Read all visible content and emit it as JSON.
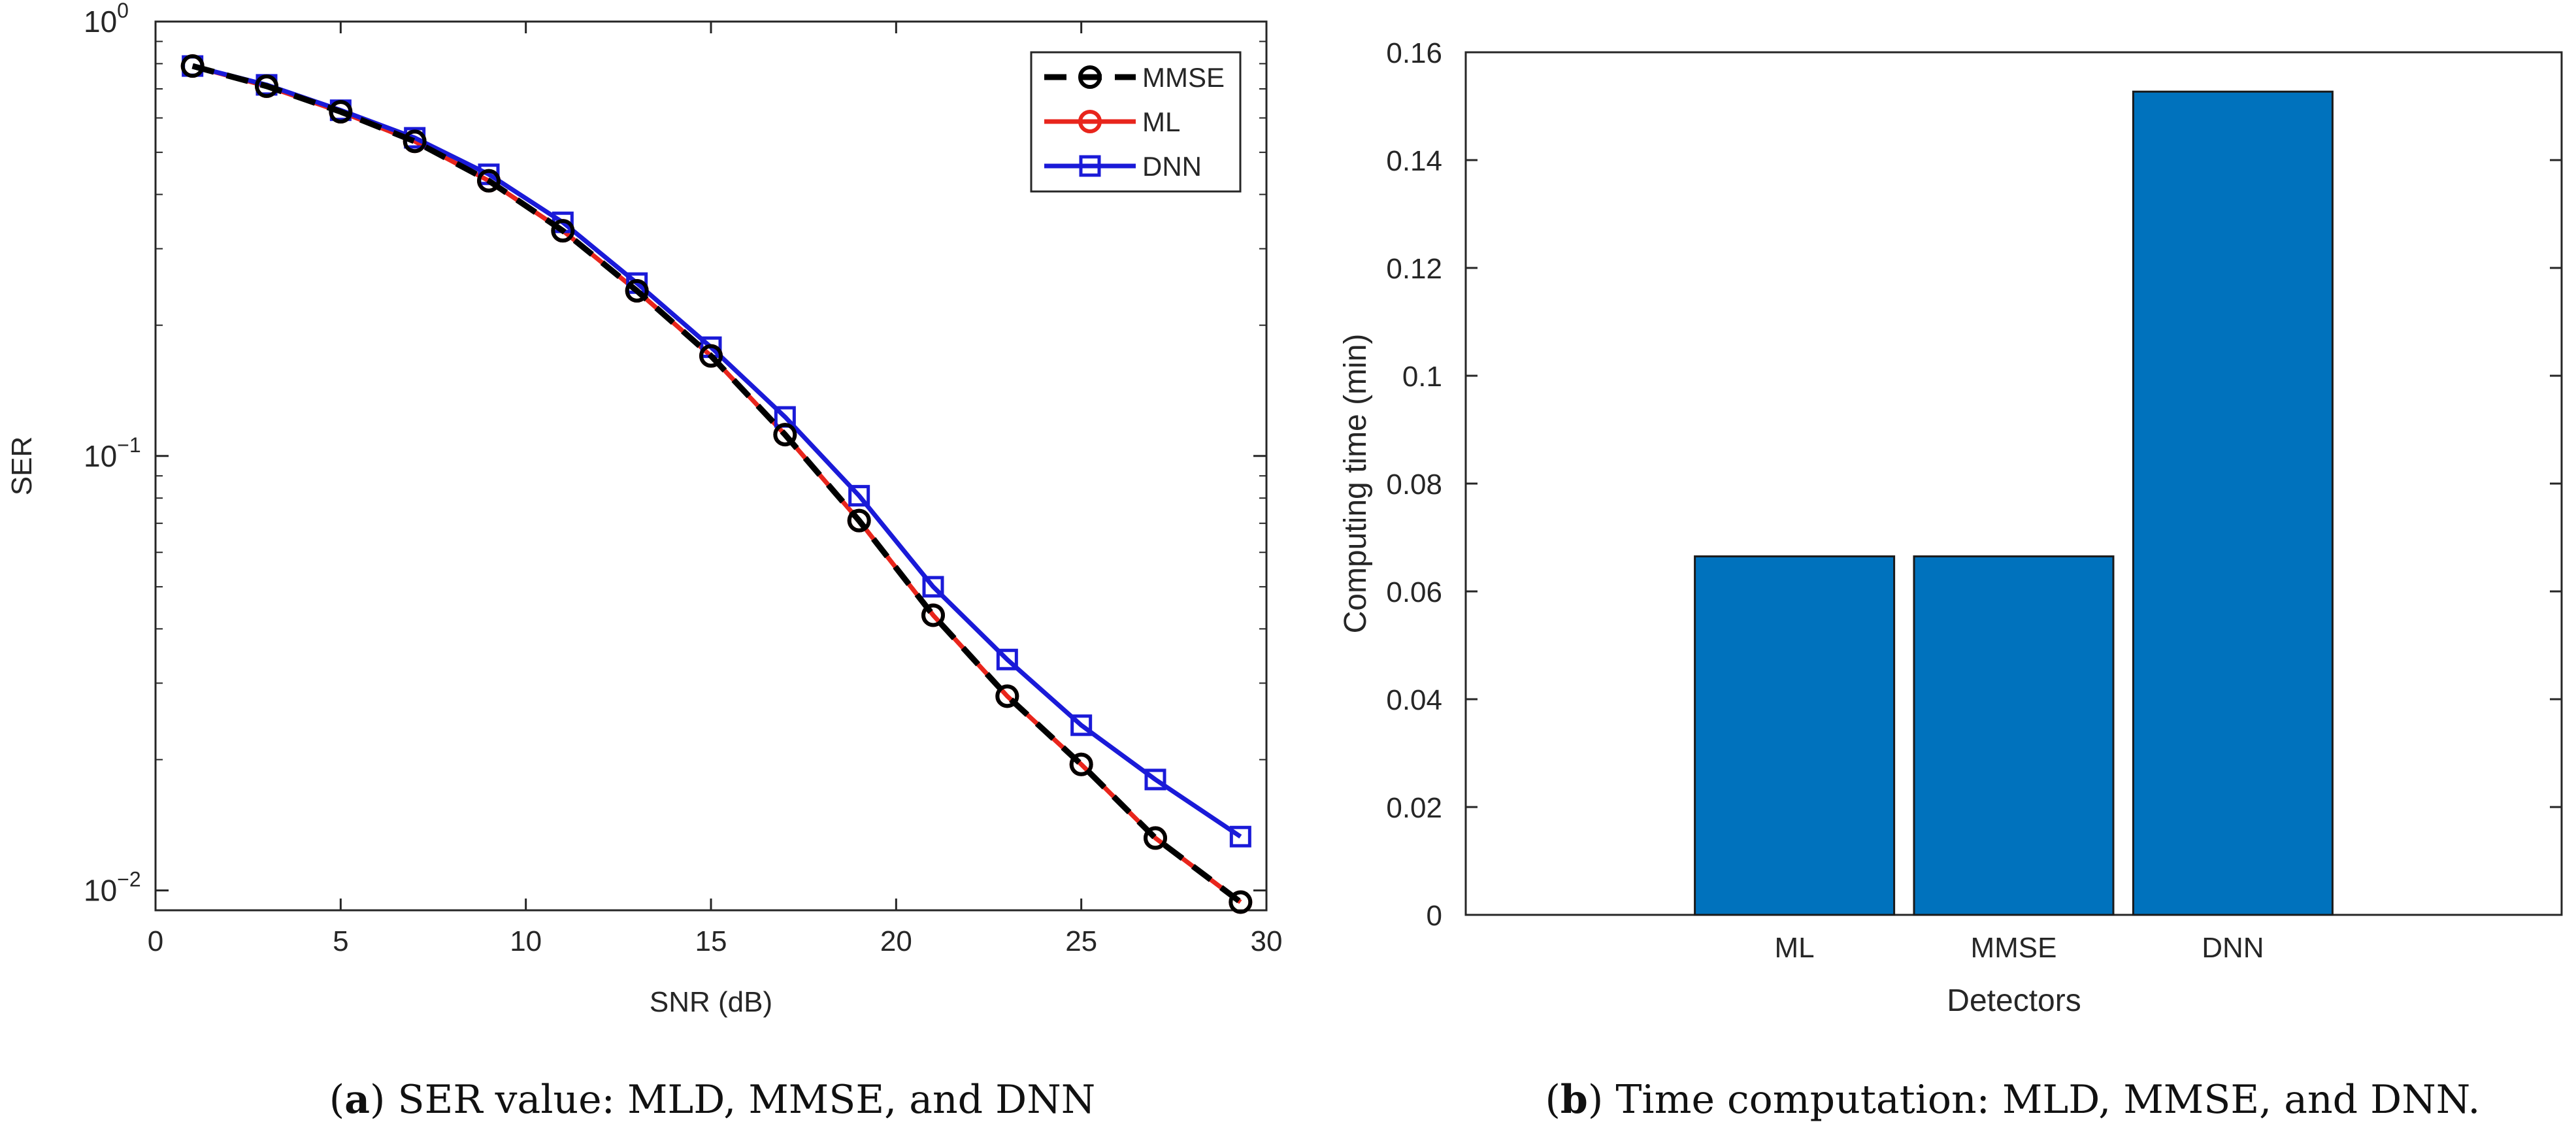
{
  "chart_data": [
    {
      "type": "line",
      "yscale": "log",
      "xlabel": "SNR (dB)",
      "ylabel": "SER",
      "xlim": [
        0,
        30
      ],
      "ylim": [
        0.009,
        1.0
      ],
      "xticks": [
        0,
        5,
        10,
        15,
        20,
        25,
        30
      ],
      "ytick_labels": [
        {
          "value": 1.0,
          "base": "10",
          "exp": "0"
        },
        {
          "value": 0.1,
          "base": "10",
          "exp": "−1"
        },
        {
          "value": 0.01,
          "base": "10",
          "exp": "−2"
        }
      ],
      "legend_position": "top-right",
      "series": [
        {
          "name": "MMSE",
          "color": "#000000",
          "dash": true,
          "marker": "circle",
          "x": [
            1,
            3,
            5,
            7,
            9,
            11,
            13,
            15,
            17,
            19,
            21,
            23,
            25,
            27,
            29.3
          ],
          "values": [
            0.79,
            0.71,
            0.62,
            0.53,
            0.43,
            0.33,
            0.24,
            0.17,
            0.112,
            0.071,
            0.043,
            0.028,
            0.0195,
            0.0132,
            0.0094
          ]
        },
        {
          "name": "ML",
          "color": "#e8251c",
          "dash": false,
          "marker": "circle",
          "x": [
            1,
            3,
            5,
            7,
            9,
            11,
            13,
            15,
            17,
            19,
            21,
            23,
            25,
            27,
            29.3
          ],
          "values": [
            0.79,
            0.71,
            0.62,
            0.53,
            0.43,
            0.33,
            0.24,
            0.17,
            0.112,
            0.071,
            0.043,
            0.028,
            0.0195,
            0.0132,
            0.0094
          ]
        },
        {
          "name": "DNN",
          "color": "#1a1ad8",
          "dash": false,
          "marker": "square",
          "x": [
            1,
            3,
            5,
            7,
            9,
            11,
            13,
            15,
            17,
            19,
            21,
            23,
            25,
            27,
            29.3
          ],
          "values": [
            0.79,
            0.715,
            0.625,
            0.54,
            0.445,
            0.345,
            0.25,
            0.178,
            0.123,
            0.081,
            0.05,
            0.034,
            0.024,
            0.018,
            0.0133
          ]
        }
      ],
      "caption": {
        "label": "a",
        "text": ") SER value: MLD, MMSE, and DNN"
      }
    },
    {
      "type": "bar",
      "xlabel": "Detectors",
      "ylabel": "Computing time (min)",
      "categories": [
        "ML",
        "MMSE",
        "DNN"
      ],
      "values": [
        0.0665,
        0.0665,
        0.1527
      ],
      "color": "#0072bd",
      "ylim": [
        0,
        0.16
      ],
      "yticks": [
        0,
        0.02,
        0.04,
        0.06,
        0.08,
        0.1,
        0.12,
        0.14,
        0.16
      ],
      "ytick_labels": [
        "0",
        "0.02",
        "0.04",
        "0.06",
        "0.08",
        "0.1",
        "0.12",
        "0.14",
        "0.16"
      ],
      "caption": {
        "label": "b",
        "text": ") Time computation: MLD, MMSE, and DNN."
      }
    }
  ]
}
